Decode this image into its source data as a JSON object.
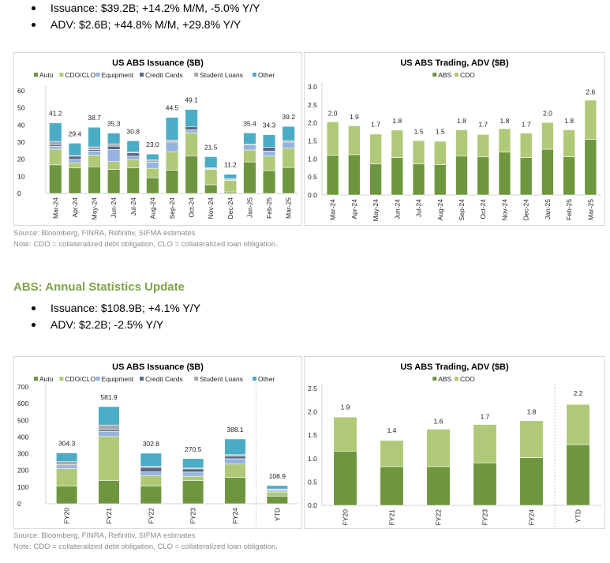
{
  "monthly_bullets": [
    "Issuance: $39.2B; +14.2% M/M, -5.0% Y/Y",
    "ADV: $2.6B; +44.8% M/M, +29.8% Y/Y"
  ],
  "monthly_source": "Source: Bloomberg, FINRA, Refinitiv, SIFMA estimates",
  "monthly_note": "Note: CDO = collateralized debt obligation, CLO = collateralized loan obligation.",
  "annual_section_title": "ABS: Annual Statistics Update",
  "annual_bullets": [
    "Issuance: $108.9B; +4.1% Y/Y",
    "ADV: $2.2B; -2.5% Y/Y"
  ],
  "annual_source": "Source: Bloomberg, FINRA, Refinitiv, SIFMA estimates",
  "annual_note": "Note: CDO = collateralized debt obligation, CLO = collateralized loan obligation.",
  "colors": {
    "Auto": "#6e963e",
    "CDO/CLO": "#b0c978",
    "Equipment": "#95b3e0",
    "Credit Cards": "#5a6882",
    "Student Loans": "#a6a9b0",
    "Other": "#4bacc6",
    "ABS": "#6e963e",
    "CDO": "#b0c978",
    "section_title": "#7ea24a"
  },
  "chart_data": [
    {
      "id": "monthly-issuance",
      "type": "bar",
      "stacked": true,
      "title": "US ABS Issuance ($B)",
      "xlabel": "",
      "ylabel": "",
      "ylim": [
        0,
        60
      ],
      "yticks": [
        0,
        10,
        20,
        30,
        40,
        50,
        60
      ],
      "legend": "top",
      "grid": false,
      "categories": [
        "Mar-24",
        "Apr-24",
        "May-24",
        "Jun-24",
        "Jul-24",
        "Aug-24",
        "Sep-24",
        "Oct-24",
        "Nov-24",
        "Dec-24",
        "Jan-25",
        "Feb-25",
        "Mar-25"
      ],
      "series": [
        {
          "name": "Auto",
          "values": [
            16.7,
            14.9,
            15.6,
            14.0,
            14.9,
            9.2,
            13.6,
            22.0,
            5.1,
            0.9,
            18.4,
            13.4,
            15.2
          ]
        },
        {
          "name": "CDO/CLO",
          "values": [
            9.2,
            3.0,
            6.8,
            4.6,
            4.9,
            5.5,
            10.8,
            13.5,
            9.0,
            6.8,
            7.0,
            8.4,
            11.3
          ]
        },
        {
          "name": "Equipment",
          "values": [
            1.6,
            2.0,
            2.4,
            7.1,
            2.0,
            3.6,
            5.3,
            1.7,
            0.5,
            0.5,
            2.9,
            3.0,
            3.5
          ]
        },
        {
          "name": "Credit Cards",
          "values": [
            1.0,
            1.9,
            0.8,
            1.9,
            1.9,
            0.6,
            0.6,
            1.9,
            0.0,
            0.0,
            0.0,
            2.2,
            0.0
          ]
        },
        {
          "name": "Student Loans",
          "values": [
            1.9,
            0.3,
            1.6,
            1.4,
            0.5,
            0.7,
            0.9,
            0.0,
            0.4,
            0.5,
            0.5,
            0.0,
            0.9
          ]
        },
        {
          "name": "Other",
          "values": [
            10.8,
            7.3,
            11.5,
            6.3,
            6.6,
            3.4,
            13.3,
            10.0,
            6.5,
            2.5,
            6.6,
            7.3,
            8.3
          ]
        }
      ],
      "totals": [
        41.2,
        29.4,
        38.7,
        35.3,
        30.8,
        23.0,
        44.5,
        49.1,
        21.5,
        11.2,
        35.4,
        34.3,
        39.2
      ],
      "total_labels": [
        "41.2",
        "29.4",
        "38.7",
        "35.3",
        "30.8",
        "23.0",
        "44.5",
        "49.1",
        "21.5",
        "11.2",
        "35.4",
        "34.3",
        "39.2"
      ]
    },
    {
      "id": "monthly-adv",
      "type": "bar",
      "stacked": true,
      "title": "US ABS Trading, ADV ($B)",
      "xlabel": "",
      "ylabel": "",
      "ylim": [
        0,
        3.0
      ],
      "yticks": [
        "0.0",
        "0.5",
        "1.0",
        "1.5",
        "2.0",
        "2.5",
        "3.0"
      ],
      "legend": "top",
      "grid": false,
      "categories": [
        "Mar-24",
        "Apr-24",
        "May-24",
        "Jun-24",
        "Jul-24",
        "Aug-24",
        "Sep-24",
        "Oct-24",
        "Nov-24",
        "Dec-24",
        "Jan-25",
        "Feb-25",
        "Mar-25"
      ],
      "series": [
        {
          "name": "ABS",
          "values": [
            1.1,
            1.12,
            0.86,
            1.04,
            0.86,
            0.84,
            1.08,
            1.06,
            1.19,
            1.04,
            1.27,
            1.06,
            1.54
          ]
        },
        {
          "name": "CDO",
          "values": [
            0.93,
            0.8,
            0.83,
            0.76,
            0.65,
            0.65,
            0.73,
            0.62,
            0.65,
            0.68,
            0.74,
            0.75,
            1.09
          ]
        }
      ],
      "totals": [
        2.0,
        1.9,
        1.7,
        1.8,
        1.5,
        1.5,
        1.8,
        1.7,
        1.8,
        1.7,
        2.0,
        1.8,
        2.6
      ],
      "total_labels": [
        "2.0",
        "1.9",
        "1.7",
        "1.8",
        "1.5",
        "1.5",
        "1.8",
        "1.7",
        "1.8",
        "1.7",
        "2.0",
        "1.8",
        "2.6"
      ]
    },
    {
      "id": "annual-issuance",
      "type": "bar",
      "stacked": true,
      "title": "US ABS Issuance ($B)",
      "xlabel": "",
      "ylabel": "",
      "ylim": [
        0,
        700
      ],
      "yticks": [
        0,
        100,
        200,
        300,
        400,
        500,
        600,
        700
      ],
      "legend": "top",
      "grid": false,
      "separator_before_last": true,
      "categories": [
        "FY20",
        "FY21",
        "FY22",
        "FY23",
        "FY24",
        "YTD"
      ],
      "series": [
        {
          "name": "Auto",
          "values": [
            107,
            140,
            107,
            140,
            158,
            46
          ]
        },
        {
          "name": "CDO/CLO",
          "values": [
            103,
            263,
            62,
            25,
            80,
            25
          ]
        },
        {
          "name": "Equipment",
          "values": [
            18,
            31,
            22,
            25,
            32,
            10
          ]
        },
        {
          "name": "Credit Cards",
          "values": [
            6,
            10,
            27,
            19,
            16,
            2
          ]
        },
        {
          "name": "Student Loans",
          "values": [
            18,
            28,
            6,
            5,
            8,
            6
          ]
        },
        {
          "name": "Other",
          "values": [
            52.3,
            109.9,
            78.8,
            56.5,
            94.1,
            19.9
          ]
        }
      ],
      "totals": [
        304.3,
        581.9,
        302.8,
        270.5,
        388.1,
        108.9
      ],
      "total_labels": [
        "304.3",
        "581.9",
        "302.8",
        "270.5",
        "388.1",
        "108.9"
      ]
    },
    {
      "id": "annual-adv",
      "type": "bar",
      "stacked": true,
      "title": "US ABS Trading, ADV ($B)",
      "xlabel": "",
      "ylabel": "",
      "ylim": [
        0,
        2.5
      ],
      "yticks": [
        "0.0",
        "0.5",
        "1.0",
        "1.5",
        "2.0",
        "2.5"
      ],
      "legend": "top",
      "grid": false,
      "separator_before_last": true,
      "categories": [
        "FY20",
        "FY21",
        "FY22",
        "FY23",
        "FY24",
        "YTD"
      ],
      "series": [
        {
          "name": "ABS",
          "values": [
            1.16,
            0.83,
            0.83,
            0.91,
            1.02,
            1.3
          ]
        },
        {
          "name": "CDO",
          "values": [
            0.73,
            0.56,
            0.8,
            0.82,
            0.79,
            0.86
          ]
        }
      ],
      "totals": [
        1.9,
        1.4,
        1.6,
        1.7,
        1.8,
        2.2
      ],
      "total_labels": [
        "1.9",
        "1.4",
        "1.6",
        "1.7",
        "1.8",
        "2.2"
      ]
    }
  ]
}
